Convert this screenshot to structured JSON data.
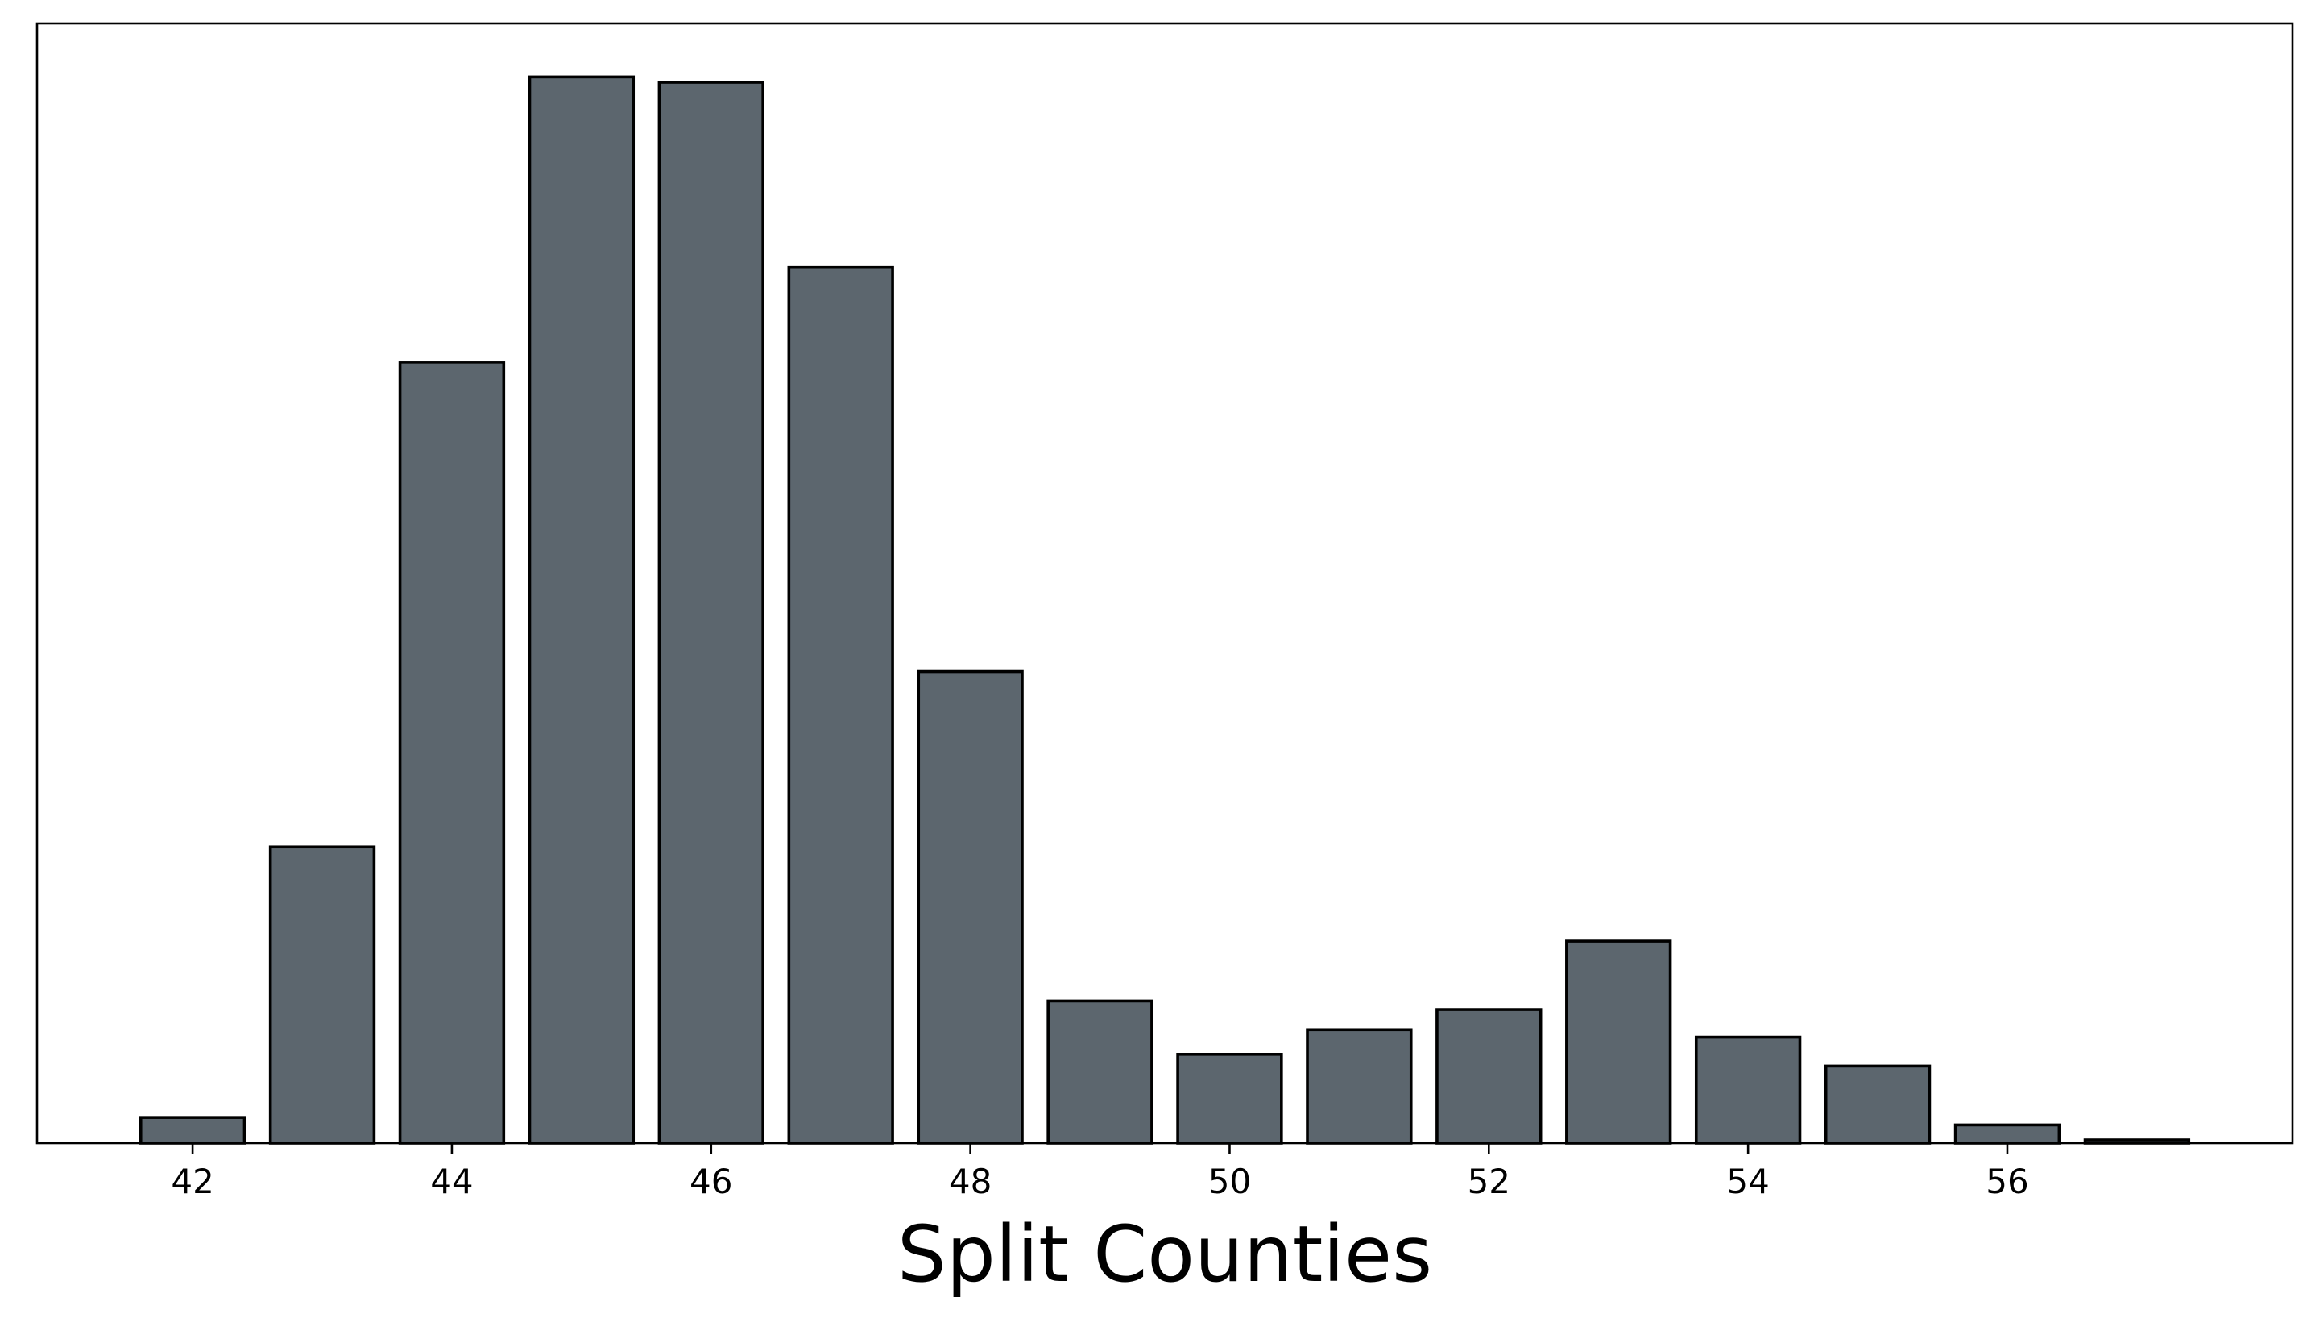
{
  "chart_data": {
    "type": "bar",
    "title": "",
    "xlabel": "Split Counties",
    "ylabel": "",
    "categories": [
      42,
      43,
      44,
      45,
      46,
      47,
      48,
      49,
      50,
      51,
      52,
      53,
      54,
      55,
      56,
      57
    ],
    "values": [
      2.4,
      27.7,
      73.0,
      99.7,
      99.2,
      81.9,
      44.1,
      13.3,
      8.3,
      10.6,
      12.5,
      18.9,
      9.9,
      7.2,
      1.7,
      0.3
    ],
    "xticks": [
      42,
      44,
      46,
      48,
      50,
      52,
      54,
      56
    ],
    "xlim": [
      40.8,
      58.2
    ],
    "ylim": [
      0,
      104.7
    ],
    "y_ticks_shown": false,
    "grid": false,
    "legend": "none",
    "bar_width": 0.8,
    "colors": {
      "bar_fill": "#5c666e",
      "bar_edge": "#000000"
    }
  }
}
